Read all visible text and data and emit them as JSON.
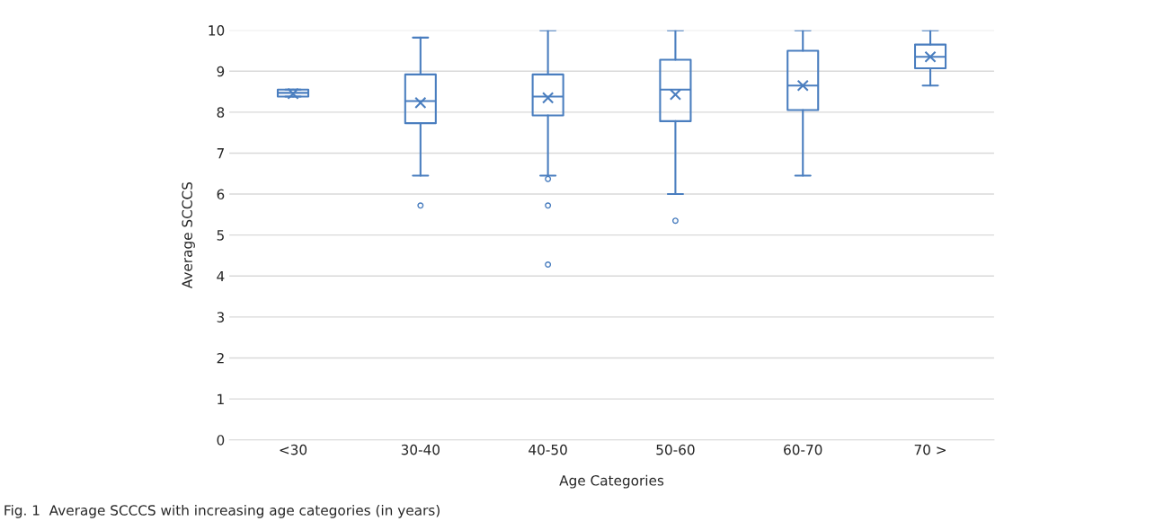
{
  "chart_data": {
    "type": "box",
    "xlabel": "Age Categories",
    "ylabel": "Average SCCCS",
    "categories": [
      "<30",
      "30-40",
      "40-50",
      "50-60",
      "60-70",
      "70 >"
    ],
    "boxes": [
      {
        "low": 8.38,
        "q1": 8.38,
        "median": 8.47,
        "q3": 8.55,
        "high": 8.55,
        "mean": 8.45
      },
      {
        "low": 6.45,
        "q1": 7.73,
        "median": 8.27,
        "q3": 8.92,
        "high": 9.82,
        "mean": 8.23,
        "outliers": [
          5.72
        ]
      },
      {
        "low": 6.45,
        "q1": 7.92,
        "median": 8.38,
        "q3": 8.92,
        "high": 10,
        "mean": 8.35,
        "outliers": [
          6.37,
          5.72,
          4.28
        ]
      },
      {
        "low": 6.0,
        "q1": 7.78,
        "median": 8.55,
        "q3": 9.28,
        "high": 10,
        "mean": 8.43,
        "outliers": [
          5.35
        ]
      },
      {
        "low": 6.45,
        "q1": 8.05,
        "median": 8.65,
        "q3": 9.5,
        "high": 10,
        "mean": 8.65
      },
      {
        "low": 8.65,
        "q1": 9.07,
        "median": 9.35,
        "q3": 9.65,
        "high": 10,
        "mean": 9.35
      }
    ],
    "color": "#4a7ebf",
    "ylim": [
      0,
      10
    ],
    "yticks": [
      0,
      1,
      2,
      3,
      4,
      5,
      6,
      7,
      8,
      9,
      10
    ],
    "grid": "y",
    "annotations": [
      "Fig. 1  Average SCCCS with increasing age categories (in years)"
    ]
  }
}
